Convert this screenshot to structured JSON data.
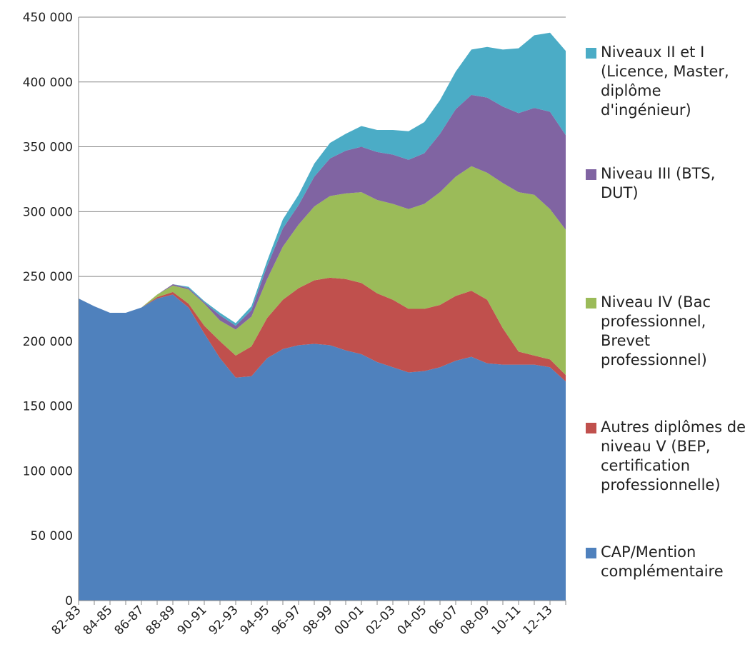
{
  "chart_data": {
    "type": "stacked_area",
    "categories": [
      "82-83",
      null,
      "84-85",
      null,
      "86-87",
      null,
      "88-89",
      null,
      "90-91",
      null,
      "92-93",
      null,
      "94-95",
      null,
      "96-97",
      null,
      "98-99",
      null,
      "00-01",
      null,
      "02-03",
      null,
      "04-05",
      null,
      "06-07",
      null,
      "08-09",
      null,
      "10-11",
      null,
      "12-13",
      null
    ],
    "series": [
      {
        "name": "CAP/Mention complémentaire",
        "color": "#4f81bd",
        "values": [
          233000,
          227000,
          222000,
          222000,
          226000,
          233000,
          236000,
          226000,
          206000,
          187000,
          172000,
          173000,
          187000,
          194000,
          197000,
          198000,
          197000,
          193000,
          190000,
          184000,
          180000,
          176000,
          177000,
          180000,
          185000,
          188000,
          183000,
          182000,
          182000,
          182000,
          180000,
          169000
        ]
      },
      {
        "name": "Autres diplômes de niveau V (BEP, certification professionnelle)",
        "color": "#c0504d",
        "values": [
          0,
          0,
          0,
          0,
          0,
          1000,
          2000,
          3000,
          6000,
          13000,
          17000,
          23000,
          31000,
          38000,
          44000,
          49000,
          52000,
          55000,
          55000,
          53000,
          52000,
          49000,
          48000,
          48000,
          50000,
          51000,
          49000,
          28000,
          10000,
          7000,
          6000,
          5000
        ]
      },
      {
        "name": "Niveau IV (Bac professionnel, Brevet professionnel)",
        "color": "#9bbb59",
        "values": [
          0,
          0,
          0,
          0,
          0,
          2000,
          5000,
          11000,
          17000,
          16000,
          20000,
          23000,
          30000,
          41000,
          49000,
          57000,
          63000,
          66000,
          70000,
          72000,
          74000,
          77000,
          81000,
          87000,
          92000,
          96000,
          98000,
          112000,
          123000,
          124000,
          116000,
          112000
        ]
      },
      {
        "name": "Niveau III (BTS, DUT)",
        "color": "#8064a2",
        "values": [
          0,
          0,
          0,
          0,
          0,
          0,
          1000,
          1000,
          1000,
          4000,
          3000,
          5000,
          10000,
          14000,
          15000,
          23000,
          29000,
          33000,
          35000,
          37000,
          38000,
          38000,
          39000,
          45000,
          52000,
          55000,
          58000,
          59000,
          61000,
          67000,
          75000,
          73000
        ]
      },
      {
        "name": "Niveaux II et I (Licence, Master, diplôme d'ingénieur)",
        "color": "#4bacc6",
        "values": [
          0,
          0,
          0,
          0,
          0,
          0,
          0,
          1000,
          1000,
          2000,
          2000,
          3000,
          4000,
          7000,
          8000,
          10000,
          12000,
          13000,
          16000,
          17000,
          19000,
          22000,
          24000,
          26000,
          29000,
          35000,
          39000,
          44000,
          50000,
          56000,
          61000,
          65000
        ]
      }
    ],
    "ylim": [
      0,
      450000
    ],
    "yticks": [
      0,
      {
        "value": 50000,
        "label": "50 000"
      },
      {
        "value": 100000,
        "label": "100 000"
      },
      {
        "value": 150000,
        "label": "150 000"
      },
      {
        "value": 200000,
        "label": "200 000"
      },
      {
        "value": 250000,
        "label": "250 000"
      },
      {
        "value": 300000,
        "label": "300 000"
      },
      {
        "value": 350000,
        "label": "350 000"
      },
      {
        "value": 400000,
        "label": "400 000"
      },
      {
        "value": 450000,
        "label": "450 000"
      }
    ],
    "grid": true,
    "legend": "right"
  }
}
